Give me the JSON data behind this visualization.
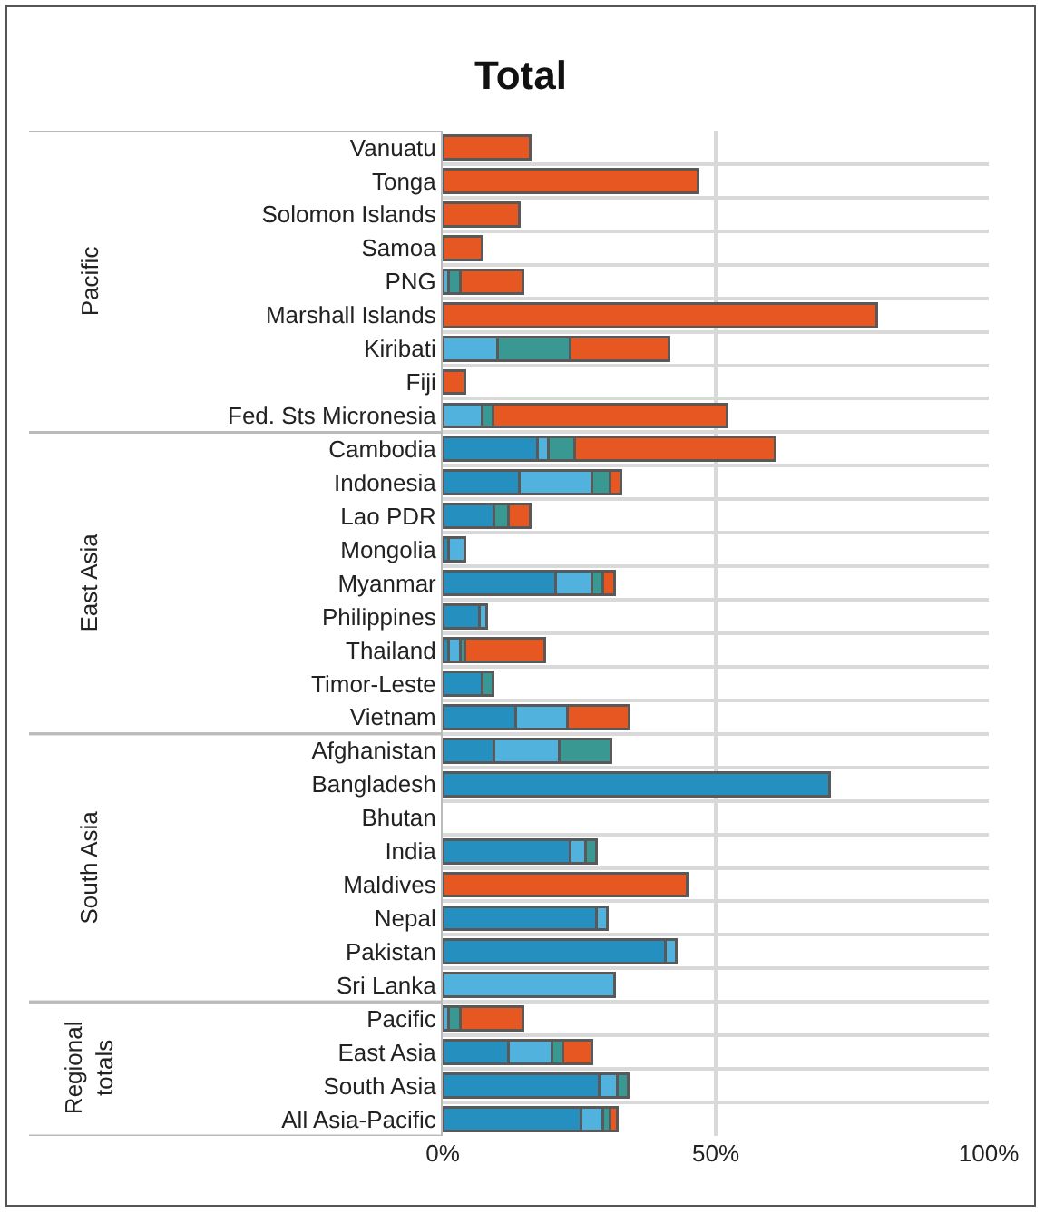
{
  "chart_data": {
    "type": "bar",
    "title": "Total",
    "orientation": "horizontal",
    "stacked": true,
    "grid": true,
    "categories": [
      "Vanuatu",
      "Tonga",
      "Solomon Islands",
      "Samoa",
      "PNG",
      "Marshall Islands",
      "Kiribati",
      "Fiji",
      "Fed. Sts Micronesia",
      "Cambodia",
      "Indonesia",
      "Lao PDR",
      "Mongolia",
      "Myanmar",
      "Philippines",
      "Thailand",
      "Timor-Leste",
      "Vietnam",
      "Afghanistan",
      "Bangladesh",
      "Bhutan",
      "India",
      "Maldives",
      "Nepal",
      "Pakistan",
      "Sri Lanka",
      "Pacific",
      "East Asia",
      "South Asia",
      "All Asia-Pacific"
    ],
    "series": [
      {
        "color": "#2590c0",
        "values": [
          null,
          null,
          null,
          null,
          null,
          null,
          null,
          null,
          null,
          17.4,
          14.0,
          9.4,
          1.1,
          20.7,
          6.7,
          1.1,
          7.3,
          13.4,
          9.4,
          70.8,
          null,
          23.4,
          null,
          28.1,
          40.8,
          null,
          null,
          12.0,
          28.7,
          25.4
        ]
      },
      {
        "color": "#52b2de",
        "values": [
          null,
          null,
          null,
          null,
          1.1,
          null,
          10.0,
          null,
          7.3,
          1.9,
          13.4,
          null,
          2.9,
          6.7,
          1.3,
          2.2,
          null,
          9.4,
          12.0,
          null,
          null,
          2.7,
          null,
          2.0,
          2.0,
          31.4,
          1.1,
          8.0,
          3.3,
          4.0
        ]
      },
      {
        "color": "#3a9892",
        "values": [
          null,
          null,
          null,
          null,
          2.2,
          null,
          13.4,
          null,
          2.0,
          4.8,
          3.3,
          2.7,
          null,
          2.0,
          null,
          0.7,
          2.0,
          null,
          9.4,
          null,
          null,
          2.0,
          null,
          null,
          null,
          null,
          2.2,
          2.0,
          2.0,
          1.3
        ]
      },
      {
        "color": "#e65722",
        "values": [
          16.0,
          46.8,
          14.0,
          7.3,
          11.4,
          79.5,
          18.0,
          4.0,
          42.8,
          36.7,
          2.0,
          4.0,
          null,
          2.0,
          null,
          14.7,
          null,
          11.4,
          null,
          null,
          null,
          null,
          44.8,
          null,
          null,
          null,
          11.4,
          5.3,
          null,
          1.3
        ]
      }
    ],
    "xlim": [
      0,
      100
    ],
    "xticks": [
      {
        "value": 0,
        "label": "0%"
      },
      {
        "value": 50,
        "label": "50%"
      },
      {
        "value": 100,
        "label": "100%"
      }
    ],
    "annotations": [
      "Pacific",
      "East Asia",
      "South Asia",
      "Regional totals"
    ]
  }
}
